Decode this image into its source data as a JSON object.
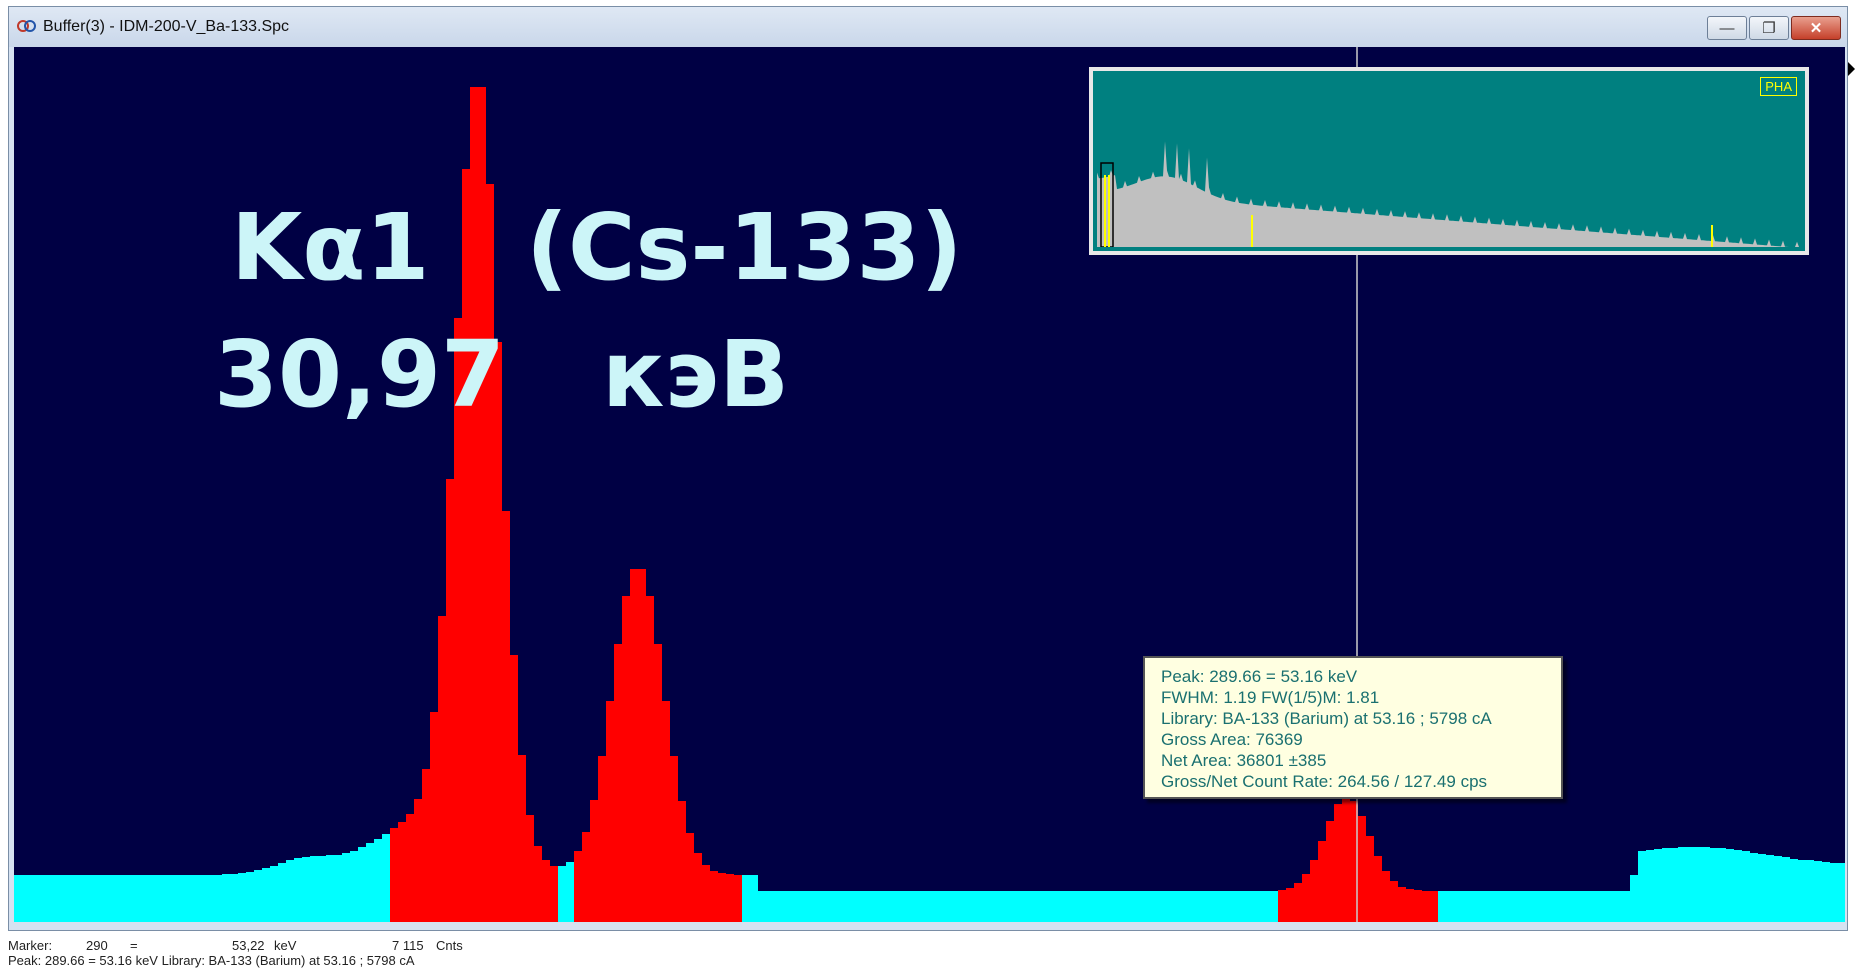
{
  "window": {
    "title": "Buffer(3) - IDM-200-V_Ba-133.Spc",
    "controls": {
      "minimize": "—",
      "maximize": "❐",
      "close": "✕"
    }
  },
  "annotations": {
    "line1_left": "Kα1",
    "line1_right": "(Cs-133)",
    "line2_left": "30,97",
    "line2_right": "кэВ"
  },
  "overview": {
    "badge": "PHA"
  },
  "peak_info": {
    "peak": "Peak: 289.66 = 53.16 keV",
    "fwhm": "FWHM: 1.19  FW(1/5)M: 1.81",
    "library": "Library: BA-133 (Barium) at 53.16 ;  5798 cA",
    "gross_area": "Gross Area: 76369",
    "net_area": "Net Area: 36801 ±385",
    "count_rate": "Gross/Net Count Rate: 264.56 / 127.49 cps"
  },
  "status": {
    "marker_label": "Marker:",
    "marker_channel": "290",
    "equals": "=",
    "marker_energy": "53,22",
    "energy_unit": "keV",
    "marker_counts": "7 115",
    "counts_unit": "Cnts",
    "peak_line": "Peak: 289.66 = 53.16 keV  Library: BA-133 (Barium) at 53.16 ;  5798 cA"
  },
  "colors": {
    "background": "#000044",
    "spectrum_baseline": "#00ffff",
    "roi_peaks": "#ff0000",
    "overview_bg": "#008080",
    "overview_spectrum": "#c0c0c0",
    "overview_markers": "#ffff00",
    "marker_line": "#cccccc"
  }
}
